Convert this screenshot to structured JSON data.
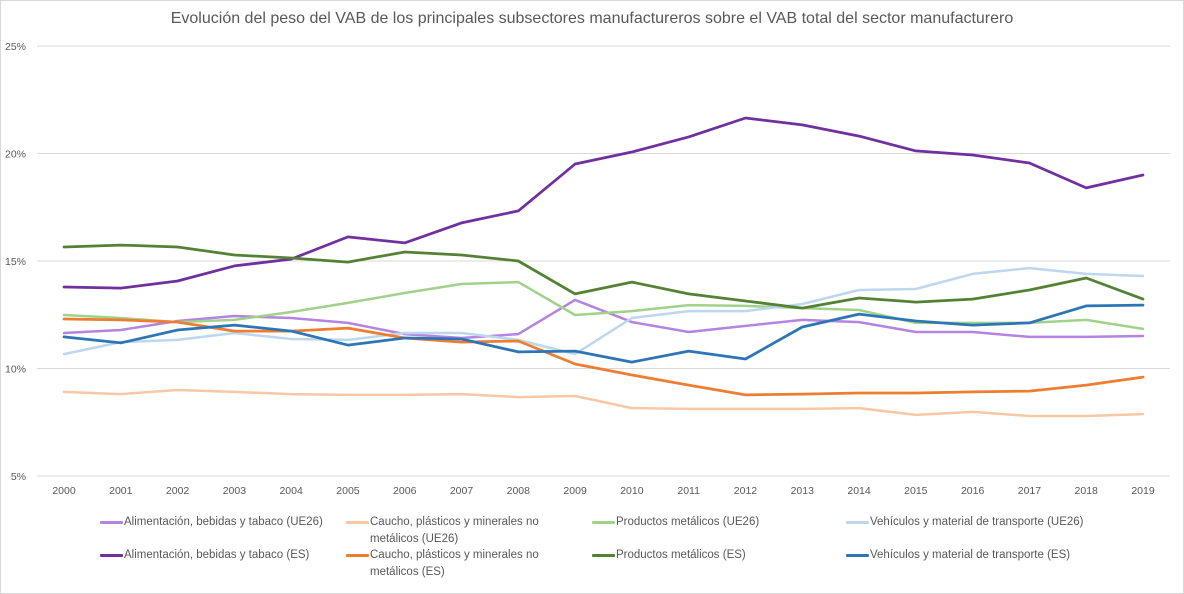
{
  "chart_data": {
    "type": "line",
    "title": "Evolución del peso del VAB de los principales subsectores manufactureros sobre el VAB total del sector manufacturero",
    "xlabel": "",
    "ylabel": "",
    "ylim": [
      5,
      25
    ],
    "yticks": [
      5,
      10,
      15,
      20,
      25
    ],
    "ytick_labels": [
      "5%",
      "10%",
      "15%",
      "20%",
      "25%"
    ],
    "grid": true,
    "legend_position": "bottom",
    "x": [
      "2000",
      "2001",
      "2002",
      "2003",
      "2004",
      "2005",
      "2006",
      "2007",
      "2008",
      "2009",
      "2010",
      "2011",
      "2012",
      "2013",
      "2014",
      "2015",
      "2016",
      "2017",
      "2018",
      "2019"
    ],
    "series": [
      {
        "name": "Alimentación, bebidas y tabaco (UE26)",
        "color": "#b384e0",
        "width": 2.5,
        "values": [
          11.65,
          11.79,
          12.21,
          12.44,
          12.35,
          12.12,
          11.6,
          11.42,
          11.6,
          13.19,
          12.16,
          11.7,
          11.98,
          12.26,
          12.16,
          11.7,
          11.7,
          11.47,
          11.47,
          11.51
        ]
      },
      {
        "name": "Caucho, plásticos y minerales no metálicos (UE26)",
        "color": "#f8c7a6",
        "width": 2.5,
        "values": [
          8.91,
          8.81,
          9.0,
          8.91,
          8.81,
          8.77,
          8.77,
          8.81,
          8.67,
          8.72,
          8.16,
          8.12,
          8.12,
          8.12,
          8.16,
          7.84,
          7.98,
          7.79,
          7.79,
          7.88
        ]
      },
      {
        "name": "Productos metálicos (UE26)",
        "color": "#a1d28a",
        "width": 2.5,
        "values": [
          12.49,
          12.35,
          12.16,
          12.26,
          12.63,
          13.05,
          13.51,
          13.93,
          14.02,
          12.49,
          12.67,
          12.95,
          12.91,
          12.81,
          12.72,
          12.12,
          12.12,
          12.12,
          12.26,
          11.84
        ]
      },
      {
        "name": "Vehículos y material de transporte (UE26)",
        "color": "#bdd7ee",
        "width": 2.5,
        "values": [
          10.67,
          11.23,
          11.33,
          11.65,
          11.37,
          11.33,
          11.65,
          11.65,
          11.33,
          10.67,
          12.35,
          12.67,
          12.67,
          13.0,
          13.65,
          13.7,
          14.4,
          14.67,
          14.4,
          14.3
        ]
      },
      {
        "name": "Alimentación, bebidas y tabaco (ES)",
        "color": "#7030a0",
        "width": 2.75,
        "values": [
          13.79,
          13.74,
          14.07,
          14.77,
          15.09,
          16.12,
          15.84,
          16.77,
          17.33,
          19.51,
          20.07,
          20.77,
          21.65,
          21.33,
          20.81,
          20.12,
          19.93,
          19.56,
          18.4,
          19.0
        ]
      },
      {
        "name": "Caucho, plásticos y minerales no metálicos (ES)",
        "color": "#ed7d31",
        "width": 2.75,
        "values": [
          12.3,
          12.26,
          12.16,
          11.74,
          11.74,
          11.88,
          11.42,
          11.23,
          11.28,
          10.21,
          9.7,
          9.23,
          8.77,
          8.81,
          8.86,
          8.86,
          8.91,
          8.95,
          9.23,
          9.6
        ]
      },
      {
        "name": "Productos metálicos (ES)",
        "color": "#548235",
        "width": 2.75,
        "values": [
          15.65,
          15.74,
          15.65,
          15.28,
          15.14,
          14.95,
          15.42,
          15.28,
          15.0,
          13.47,
          14.02,
          13.47,
          13.14,
          12.81,
          13.28,
          13.09,
          13.23,
          13.65,
          14.21,
          13.23
        ]
      },
      {
        "name": "Vehículos y material de transporte (ES)",
        "color": "#2e75b6",
        "width": 2.75,
        "values": [
          11.47,
          11.19,
          11.79,
          12.02,
          11.74,
          11.09,
          11.42,
          11.37,
          10.77,
          10.81,
          10.3,
          10.81,
          10.44,
          11.93,
          12.53,
          12.21,
          12.02,
          12.12,
          12.91,
          12.95
        ]
      }
    ]
  }
}
